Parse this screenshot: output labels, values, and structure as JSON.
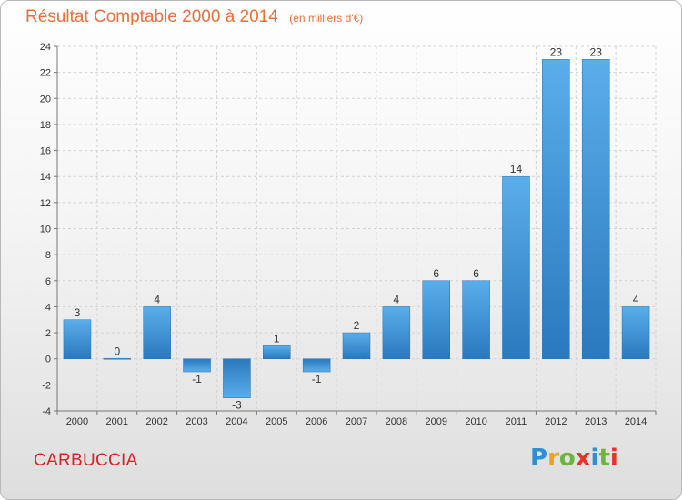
{
  "title": "Résultat Comptable 2000 à 2014",
  "unit": "(en milliers d'€)",
  "commune": "CARBUCCIA",
  "logo": {
    "letters": [
      "P",
      "r",
      "o",
      "x",
      "i",
      "t",
      "i"
    ],
    "colors": [
      "#2e8fd9",
      "#f2a01b",
      "#6cb33f",
      "#e8332a",
      "#2e8fd9",
      "#6cb33f",
      "#e8332a"
    ]
  },
  "chart_data": {
    "type": "bar",
    "title": "Résultat Comptable 2000 à 2014",
    "ylabel": "(en milliers d'€)",
    "xlabel": "",
    "categories": [
      "2000",
      "2001",
      "2002",
      "2003",
      "2004",
      "2005",
      "2006",
      "2007",
      "2008",
      "2009",
      "2010",
      "2011",
      "2012",
      "2013",
      "2014"
    ],
    "values": [
      3,
      0,
      4,
      -1,
      -3,
      1,
      -1,
      2,
      4,
      6,
      6,
      14,
      23,
      23,
      4
    ],
    "ylim": [
      -4,
      24
    ],
    "yticks": [
      -4,
      -2,
      0,
      2,
      4,
      6,
      8,
      10,
      12,
      14,
      16,
      18,
      20,
      22,
      24
    ],
    "grid": true,
    "bar_color": "#3a8fd6"
  }
}
